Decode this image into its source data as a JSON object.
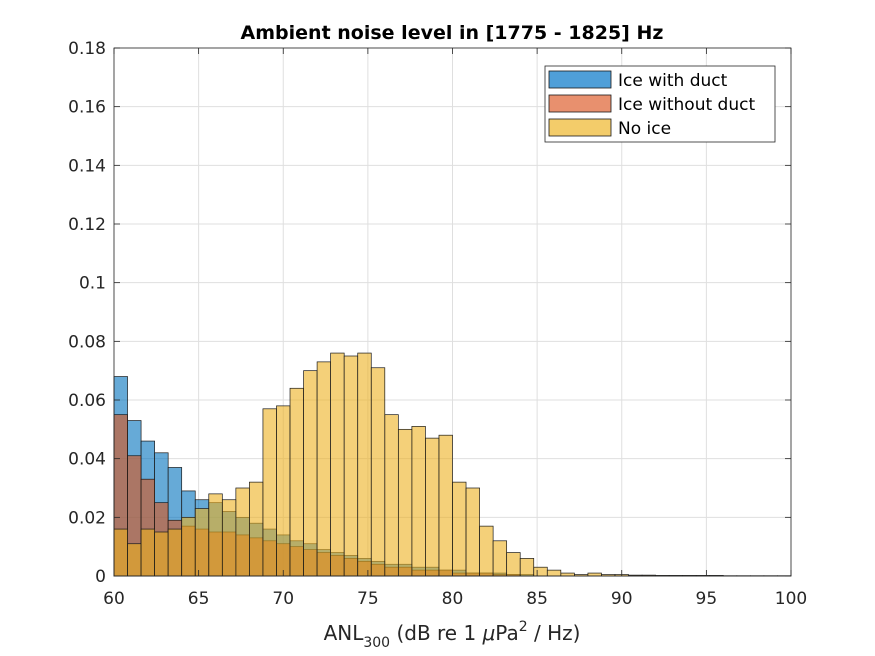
{
  "chart_data": {
    "type": "bar",
    "subtype": "overlapping-histogram",
    "title": "Ambient noise level in [1775 - 1825] Hz",
    "xlabel": {
      "base": "ANL",
      "subscript": "300",
      "rest_before_mu": " (dB re 1 ",
      "mu": "μ",
      "rest_pa": "Pa",
      "superscript": "2",
      "rest_after": " / Hz)"
    },
    "xlim": [
      60,
      100
    ],
    "ylim": [
      0,
      0.18
    ],
    "xticks": [
      "60",
      "65",
      "70",
      "75",
      "80",
      "85",
      "90",
      "95",
      "100"
    ],
    "yticks": [
      "0",
      "0.02",
      "0.04",
      "0.06",
      "0.08",
      "0.1",
      "0.12",
      "0.14",
      "0.16",
      "0.18"
    ],
    "grid": true,
    "legend_position": "top-right",
    "bin_start": 60,
    "bin_width": 0.8,
    "series": [
      {
        "name": "Ice with duct",
        "color": "#0072BD",
        "face": "#4f9fd8",
        "values": [
          0.068,
          0.053,
          0.046,
          0.042,
          0.037,
          0.029,
          0.026,
          0.025,
          0.022,
          0.02,
          0.018,
          0.016,
          0.014,
          0.012,
          0.011,
          0.009,
          0.008,
          0.007,
          0.006,
          0.005,
          0.004,
          0.004,
          0.003,
          0.003,
          0.002,
          0.002,
          0.001,
          0.001,
          0.001,
          0.0005,
          0.0005,
          0,
          0,
          0,
          0,
          0,
          0,
          0,
          0,
          0,
          0,
          0,
          0,
          0,
          0,
          0,
          0,
          0,
          0,
          0
        ]
      },
      {
        "name": "Ice without duct",
        "color": "#D95319",
        "face": "#e8906e",
        "values": [
          0.055,
          0.041,
          0.033,
          0.025,
          0.019,
          0.017,
          0.016,
          0.015,
          0.015,
          0.014,
          0.013,
          0.012,
          0.011,
          0.01,
          0.009,
          0.008,
          0.007,
          0.006,
          0.005,
          0.004,
          0.003,
          0.003,
          0.002,
          0.002,
          0.002,
          0.001,
          0.001,
          0.001,
          0.0005,
          0.0005,
          0,
          0,
          0,
          0,
          0,
          0,
          0,
          0,
          0,
          0,
          0,
          0,
          0,
          0,
          0,
          0,
          0,
          0,
          0,
          0
        ]
      },
      {
        "name": "No ice",
        "color": "#EDB120",
        "face": "#f3cc6a",
        "values": [
          0.016,
          0.011,
          0.016,
          0.015,
          0.016,
          0.02,
          0.023,
          0.028,
          0.026,
          0.03,
          0.032,
          0.057,
          0.058,
          0.064,
          0.07,
          0.073,
          0.076,
          0.075,
          0.076,
          0.071,
          0.055,
          0.05,
          0.051,
          0.047,
          0.048,
          0.032,
          0.03,
          0.017,
          0.012,
          0.008,
          0.006,
          0.003,
          0.002,
          0.001,
          0.0005,
          0.001,
          0.0005,
          0.0005,
          0.0003,
          0.0003,
          0.0002,
          0.0002,
          0.0002,
          0.0002,
          0.0002,
          0.0001,
          0.0001,
          0.0001,
          0.0001,
          0.0001
        ]
      }
    ]
  }
}
